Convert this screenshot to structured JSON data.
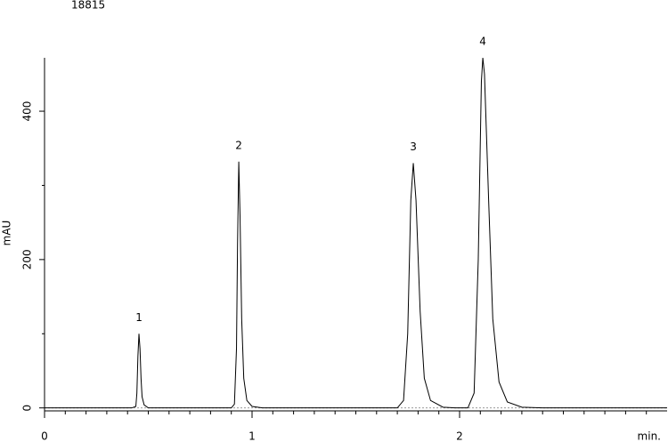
{
  "chart_data": {
    "type": "line",
    "title": "18815",
    "y_label": "mAU",
    "x_label": "min.",
    "x": [
      0,
      0.42,
      0.44,
      0.445,
      0.45,
      0.455,
      0.46,
      0.465,
      0.47,
      0.48,
      0.5,
      0.9,
      0.915,
      0.925,
      0.93,
      0.936,
      0.942,
      0.95,
      0.96,
      0.975,
      1.0,
      1.05,
      1.7,
      1.73,
      1.75,
      1.765,
      1.777,
      1.79,
      1.81,
      1.83,
      1.86,
      1.92,
      1.98,
      2.04,
      2.07,
      2.09,
      2.105,
      2.112,
      2.12,
      2.14,
      2.16,
      2.19,
      2.23,
      2.3,
      2.4,
      3.0
    ],
    "series": [
      {
        "color": "#000000",
        "values": [
          0,
          0,
          2,
          20,
          70,
          100,
          80,
          40,
          15,
          4,
          0,
          0,
          5,
          80,
          220,
          332,
          260,
          120,
          40,
          10,
          2,
          0,
          0,
          10,
          100,
          280,
          330,
          280,
          130,
          40,
          10,
          1,
          0,
          0,
          20,
          200,
          440,
          472,
          450,
          280,
          120,
          35,
          8,
          1,
          0,
          0
        ]
      }
    ],
    "annotations": [
      {
        "label": "1",
        "x": 0.455,
        "y": 100
      },
      {
        "label": "2",
        "x": 0.936,
        "y": 332
      },
      {
        "label": "3",
        "x": 1.777,
        "y": 330
      },
      {
        "label": "4",
        "x": 2.112,
        "y": 472
      }
    ],
    "xlim": [
      0,
      3.0
    ],
    "ylim": [
      -4,
      472
    ],
    "xticks": [
      0,
      1,
      2
    ],
    "yticks": [
      0,
      200,
      400
    ],
    "xminor_ticks": [
      0.1,
      0.2,
      0.3,
      0.4,
      0.5,
      0.6,
      0.7,
      0.8,
      0.9,
      1.1,
      1.2,
      1.3,
      1.4,
      1.5,
      1.6,
      1.7,
      1.8,
      1.9,
      2.1,
      2.2,
      2.3,
      2.4,
      2.5,
      2.6,
      2.7,
      2.8,
      2.9
    ],
    "yminor_ticks": [
      100,
      300
    ]
  }
}
